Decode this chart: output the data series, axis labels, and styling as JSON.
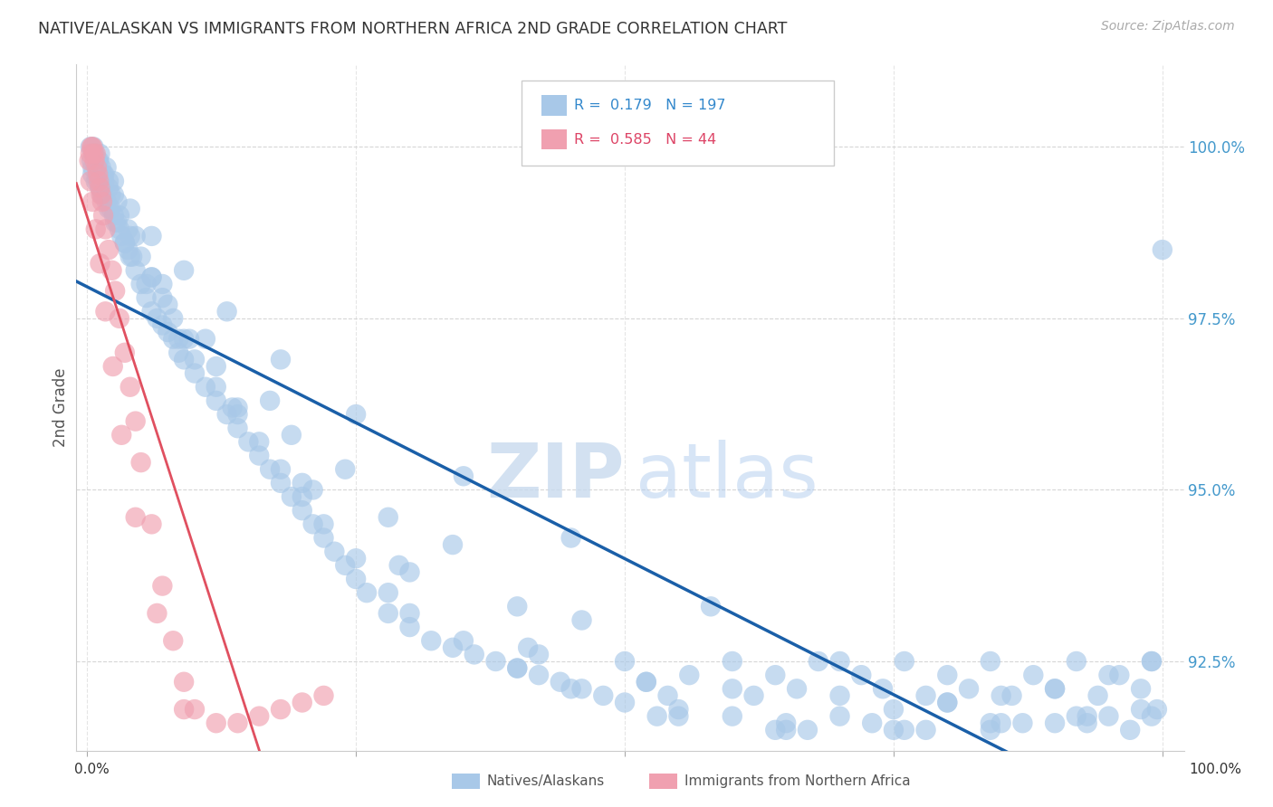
{
  "title": "NATIVE/ALASKAN VS IMMIGRANTS FROM NORTHERN AFRICA 2ND GRADE CORRELATION CHART",
  "source": "Source: ZipAtlas.com",
  "ylabel": "2nd Grade",
  "ylim": [
    91.2,
    101.2
  ],
  "xlim": [
    -1.0,
    102.0
  ],
  "yticks": [
    92.5,
    95.0,
    97.5,
    100.0
  ],
  "blue_R": 0.179,
  "blue_N": 197,
  "pink_R": 0.585,
  "pink_N": 44,
  "blue_color": "#a8c8e8",
  "pink_color": "#f0a0b0",
  "blue_line_color": "#1a5fa8",
  "pink_line_color": "#e05060",
  "legend_label_blue": "Natives/Alaskans",
  "legend_label_pink": "Immigrants from Northern Africa",
  "blue_scatter_x": [
    0.5,
    0.8,
    1.0,
    1.2,
    1.4,
    1.6,
    1.8,
    2.0,
    2.2,
    2.5,
    2.8,
    3.0,
    3.2,
    3.5,
    3.8,
    4.0,
    4.5,
    5.0,
    5.5,
    6.0,
    6.5,
    7.0,
    7.5,
    8.0,
    8.5,
    9.0,
    10.0,
    11.0,
    12.0,
    13.0,
    14.0,
    15.0,
    16.0,
    17.0,
    18.0,
    19.0,
    20.0,
    21.0,
    22.0,
    23.0,
    24.0,
    25.0,
    26.0,
    28.0,
    30.0,
    32.0,
    34.0,
    36.0,
    38.0,
    40.0,
    42.0,
    44.0,
    46.0,
    48.0,
    50.0,
    52.0,
    54.0,
    56.0,
    60.0,
    62.0,
    64.0,
    66.0,
    68.0,
    70.0,
    72.0,
    74.0,
    76.0,
    78.0,
    80.0,
    82.0,
    84.0,
    86.0,
    88.0,
    90.0,
    92.0,
    94.0,
    96.0,
    98.0,
    99.0,
    100.0,
    1.0,
    1.5,
    2.0,
    2.5,
    3.0,
    4.0,
    5.0,
    6.0,
    7.0,
    8.0,
    9.0,
    10.0,
    12.0,
    14.0,
    16.0,
    18.0,
    20.0,
    22.0,
    25.0,
    28.0,
    30.0,
    35.0,
    40.0,
    45.0,
    50.0,
    55.0,
    60.0,
    65.0,
    70.0,
    75.0,
    80.0,
    85.0,
    90.0,
    95.0,
    99.0,
    1.2,
    1.8,
    2.5,
    4.0,
    6.0,
    9.0,
    13.0,
    18.0,
    25.0,
    35.0,
    45.0,
    58.0,
    70.0,
    80.0,
    90.0,
    97.0,
    0.6,
    1.1,
    1.6,
    2.8,
    4.5,
    7.0,
    11.0,
    17.0,
    24.0,
    34.0,
    46.0,
    60.0,
    73.0,
    84.0,
    93.0,
    99.0,
    0.3,
    0.7,
    1.3,
    2.2,
    3.8,
    6.0,
    9.5,
    14.0,
    21.0,
    30.0,
    42.0,
    55.0,
    67.0,
    78.0,
    87.0,
    95.0,
    0.4,
    0.9,
    1.5,
    2.6,
    4.2,
    7.5,
    12.0,
    19.0,
    28.0,
    40.0,
    52.0,
    64.0,
    75.0,
    84.0,
    92.0,
    98.0,
    0.5,
    1.0,
    2.0,
    3.5,
    5.5,
    8.5,
    13.5,
    20.0,
    29.0,
    41.0,
    53.0,
    65.0,
    76.0,
    85.0,
    93.0,
    99.5
  ],
  "blue_scatter_y": [
    99.6,
    99.5,
    99.7,
    99.4,
    99.3,
    99.5,
    99.2,
    99.4,
    99.1,
    99.0,
    98.9,
    98.8,
    98.7,
    98.6,
    98.5,
    98.4,
    98.2,
    98.0,
    97.8,
    97.6,
    97.5,
    97.4,
    97.3,
    97.2,
    97.0,
    96.9,
    96.7,
    96.5,
    96.3,
    96.1,
    95.9,
    95.7,
    95.5,
    95.3,
    95.1,
    94.9,
    94.7,
    94.5,
    94.3,
    94.1,
    93.9,
    93.7,
    93.5,
    93.2,
    93.0,
    92.8,
    92.7,
    92.6,
    92.5,
    92.4,
    92.3,
    92.2,
    92.1,
    92.0,
    92.5,
    92.2,
    92.0,
    92.3,
    92.5,
    92.0,
    92.3,
    92.1,
    92.5,
    92.0,
    92.3,
    92.1,
    92.5,
    92.0,
    92.3,
    92.1,
    92.5,
    92.0,
    92.3,
    92.1,
    92.5,
    92.0,
    92.3,
    92.1,
    92.5,
    98.5,
    99.8,
    99.6,
    99.5,
    99.3,
    99.0,
    98.7,
    98.4,
    98.1,
    97.8,
    97.5,
    97.2,
    96.9,
    96.5,
    96.1,
    95.7,
    95.3,
    94.9,
    94.5,
    94.0,
    93.5,
    93.2,
    92.8,
    92.4,
    92.1,
    91.9,
    91.8,
    91.7,
    91.6,
    91.7,
    91.8,
    91.9,
    92.0,
    92.1,
    92.3,
    92.5,
    99.9,
    99.7,
    99.5,
    99.1,
    98.7,
    98.2,
    97.6,
    96.9,
    96.1,
    95.2,
    94.3,
    93.3,
    92.5,
    91.9,
    91.6,
    91.5,
    100.0,
    99.8,
    99.6,
    99.2,
    98.7,
    98.0,
    97.2,
    96.3,
    95.3,
    94.2,
    93.1,
    92.1,
    91.6,
    91.5,
    91.6,
    91.7,
    100.0,
    99.9,
    99.7,
    99.3,
    98.8,
    98.1,
    97.2,
    96.2,
    95.0,
    93.8,
    92.6,
    91.7,
    91.5,
    91.5,
    91.6,
    91.7,
    99.8,
    99.6,
    99.3,
    98.9,
    98.4,
    97.7,
    96.8,
    95.8,
    94.6,
    93.3,
    92.2,
    91.5,
    91.5,
    91.6,
    91.7,
    91.8,
    99.7,
    99.5,
    99.1,
    98.6,
    98.0,
    97.2,
    96.2,
    95.1,
    93.9,
    92.7,
    91.7,
    91.5,
    91.5,
    91.6,
    91.7,
    91.8
  ],
  "pink_scatter_x": [
    0.2,
    0.3,
    0.4,
    0.5,
    0.6,
    0.7,
    0.8,
    0.9,
    1.0,
    1.1,
    1.2,
    1.3,
    1.4,
    1.5,
    1.7,
    2.0,
    2.3,
    2.6,
    3.0,
    3.5,
    4.0,
    4.5,
    5.0,
    6.0,
    7.0,
    8.0,
    9.0,
    10.0,
    12.0,
    14.0,
    16.0,
    18.0,
    20.0,
    22.0,
    0.3,
    0.5,
    0.8,
    1.2,
    1.7,
    2.4,
    3.2,
    4.5,
    6.5,
    9.0
  ],
  "pink_scatter_y": [
    99.8,
    99.9,
    100.0,
    100.0,
    99.9,
    99.8,
    99.9,
    99.7,
    99.6,
    99.5,
    99.4,
    99.3,
    99.2,
    99.0,
    98.8,
    98.5,
    98.2,
    97.9,
    97.5,
    97.0,
    96.5,
    96.0,
    95.4,
    94.5,
    93.6,
    92.8,
    92.2,
    91.8,
    91.6,
    91.6,
    91.7,
    91.8,
    91.9,
    92.0,
    99.5,
    99.2,
    98.8,
    98.3,
    97.6,
    96.8,
    95.8,
    94.6,
    93.2,
    91.8
  ]
}
